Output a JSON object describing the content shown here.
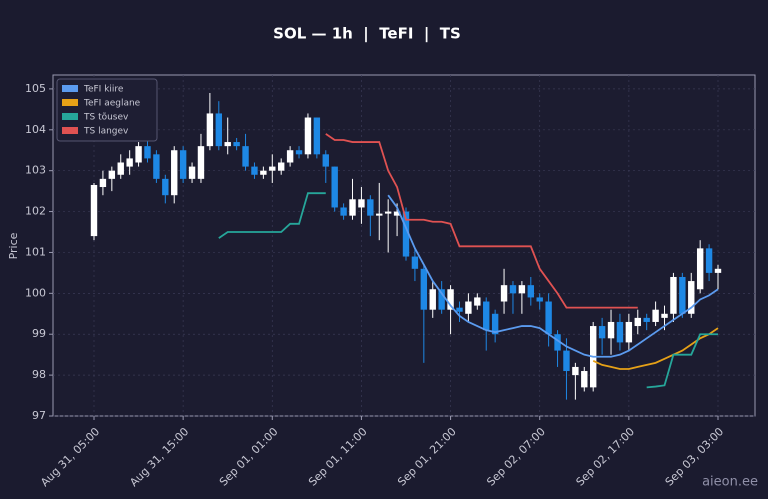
{
  "chart_data": {
    "type": "candlestick",
    "title": "SOL — 1h  |  TeFI  |  TS",
    "ylabel": "Price",
    "watermark": "aieon.ee",
    "x": [
      "Aug 31, 05:00",
      null,
      null,
      null,
      null,
      null,
      null,
      null,
      null,
      null,
      "Aug 31, 15:00",
      null,
      null,
      null,
      null,
      null,
      null,
      null,
      null,
      null,
      "Sep 01, 01:00",
      null,
      null,
      null,
      null,
      null,
      null,
      null,
      null,
      null,
      "Sep 01, 11:00",
      null,
      null,
      null,
      null,
      null,
      null,
      null,
      null,
      null,
      "Sep 01, 21:00",
      null,
      null,
      null,
      null,
      null,
      null,
      null,
      null,
      null,
      "Sep 02, 07:00",
      null,
      null,
      null,
      null,
      null,
      null,
      null,
      null,
      null,
      "Sep 02, 17:00",
      null,
      null,
      null,
      null,
      null,
      null,
      null,
      null,
      null,
      "Sep 03, 03:00"
    ],
    "open": [
      101.4,
      102.6,
      102.8,
      102.9,
      103.1,
      103.2,
      103.6,
      103.4,
      102.8,
      102.4,
      103.5,
      102.8,
      102.8,
      103.6,
      104.4,
      103.6,
      103.7,
      103.6,
      103.1,
      102.9,
      103.0,
      103.0,
      103.2,
      103.5,
      103.4,
      104.3,
      103.4,
      103.1,
      102.1,
      101.9,
      102.1,
      102.3,
      101.9,
      101.95,
      101.9,
      102.0,
      100.9,
      100.6,
      99.6,
      100.1,
      99.6,
      99.65,
      99.5,
      99.7,
      99.8,
      99.5,
      99.8,
      100.2,
      100.0,
      100.2,
      99.9,
      99.8,
      99.0,
      98.6,
      98.0,
      97.7,
      97.7,
      99.2,
      98.9,
      99.3,
      98.8,
      99.2,
      99.4,
      99.3,
      99.4,
      99.5,
      100.4,
      99.5,
      100.1,
      101.1,
      100.5
    ],
    "high": [
      102.7,
      103.0,
      103.1,
      103.4,
      103.5,
      103.7,
      103.9,
      103.5,
      102.9,
      103.6,
      103.6,
      103.2,
      103.9,
      104.9,
      104.7,
      104.3,
      103.8,
      103.9,
      103.2,
      103.1,
      103.4,
      103.3,
      103.6,
      103.6,
      104.4,
      104.3,
      103.5,
      103.1,
      102.2,
      102.8,
      102.6,
      102.4,
      102.7,
      102.3,
      102.2,
      102.1,
      101.1,
      100.7,
      100.3,
      100.3,
      100.2,
      99.8,
      100.0,
      100.0,
      99.9,
      99.6,
      100.6,
      100.3,
      100.3,
      100.4,
      100.0,
      100.0,
      99.1,
      98.9,
      98.3,
      98.2,
      99.3,
      99.4,
      99.6,
      99.5,
      99.5,
      99.6,
      99.5,
      99.8,
      99.7,
      100.5,
      100.5,
      100.5,
      101.3,
      101.2,
      100.7
    ],
    "low": [
      101.3,
      102.4,
      102.5,
      102.8,
      102.9,
      103.1,
      103.2,
      102.7,
      102.2,
      102.2,
      102.7,
      102.7,
      102.7,
      103.5,
      103.5,
      103.4,
      103.5,
      103.0,
      102.8,
      102.8,
      102.7,
      102.9,
      103.1,
      103.3,
      103.3,
      103.3,
      102.7,
      102.0,
      101.8,
      101.8,
      101.7,
      101.4,
      101.3,
      101.0,
      101.4,
      100.8,
      100.3,
      98.3,
      99.4,
      99.5,
      99.0,
      99.3,
      99.3,
      99.6,
      98.6,
      98.8,
      99.5,
      99.5,
      99.5,
      99.7,
      99.6,
      98.7,
      98.2,
      97.4,
      97.4,
      97.6,
      97.6,
      98.5,
      98.5,
      98.6,
      98.6,
      99.0,
      99.1,
      99.2,
      99.1,
      99.3,
      99.4,
      99.4,
      100.0,
      100.3,
      100.1
    ],
    "close": [
      102.65,
      102.8,
      103.0,
      103.2,
      103.3,
      103.6,
      103.3,
      102.8,
      102.4,
      103.5,
      102.8,
      103.1,
      103.6,
      104.4,
      103.6,
      103.7,
      103.6,
      103.1,
      102.9,
      103.0,
      103.1,
      103.2,
      103.5,
      103.4,
      104.3,
      103.4,
      103.1,
      102.1,
      101.9,
      102.3,
      102.3,
      101.9,
      101.95,
      102.0,
      102.0,
      100.9,
      100.6,
      99.6,
      100.1,
      99.6,
      100.1,
      99.55,
      99.8,
      99.9,
      99.1,
      99.0,
      100.2,
      100.0,
      100.2,
      99.9,
      99.8,
      99.0,
      98.6,
      98.1,
      98.2,
      98.1,
      99.2,
      98.9,
      99.3,
      98.8,
      99.3,
      99.4,
      99.3,
      99.6,
      99.5,
      100.4,
      99.5,
      100.3,
      101.1,
      100.5,
      100.6
    ],
    "up_color": "#ffffff",
    "down_color": "#1e88e5",
    "series": [
      {
        "name": "TeFI kiire",
        "color": "#5b9bef",
        "values": [
          null,
          null,
          null,
          null,
          null,
          null,
          null,
          null,
          null,
          null,
          null,
          null,
          null,
          null,
          null,
          null,
          null,
          null,
          null,
          null,
          null,
          null,
          null,
          null,
          null,
          null,
          null,
          null,
          null,
          null,
          null,
          null,
          null,
          102.4,
          102.1,
          101.6,
          101.1,
          100.7,
          100.3,
          100.0,
          99.7,
          99.45,
          99.3,
          99.2,
          99.1,
          99.05,
          99.1,
          99.15,
          99.2,
          99.2,
          99.15,
          99.0,
          98.85,
          98.7,
          98.6,
          98.5,
          98.45,
          98.45,
          98.45,
          98.5,
          98.6,
          98.75,
          98.9,
          99.05,
          99.2,
          99.35,
          99.5,
          99.65,
          99.85,
          99.95,
          100.1
        ]
      },
      {
        "name": "TeFI aeglane",
        "color": "#e6a117",
        "values": [
          null,
          null,
          null,
          null,
          null,
          null,
          null,
          null,
          null,
          null,
          null,
          null,
          null,
          null,
          null,
          null,
          null,
          null,
          null,
          null,
          null,
          null,
          null,
          null,
          null,
          null,
          null,
          null,
          null,
          null,
          null,
          null,
          null,
          null,
          null,
          null,
          null,
          null,
          null,
          null,
          null,
          null,
          null,
          null,
          null,
          null,
          null,
          null,
          null,
          null,
          null,
          null,
          null,
          null,
          null,
          null,
          98.35,
          98.25,
          98.2,
          98.15,
          98.15,
          98.2,
          98.25,
          98.3,
          98.4,
          98.5,
          98.6,
          98.75,
          98.9,
          99.0,
          99.15
        ]
      },
      {
        "name": "TS tõusev",
        "color": "#26a69a",
        "values": [
          null,
          null,
          null,
          null,
          null,
          null,
          null,
          null,
          null,
          null,
          null,
          null,
          null,
          null,
          101.35,
          101.5,
          101.5,
          101.5,
          101.5,
          101.5,
          101.5,
          101.5,
          101.7,
          101.7,
          102.45,
          102.45,
          102.45,
          null,
          null,
          null,
          null,
          null,
          null,
          null,
          null,
          null,
          null,
          null,
          null,
          null,
          null,
          null,
          null,
          null,
          null,
          null,
          null,
          null,
          null,
          null,
          null,
          null,
          null,
          null,
          null,
          null,
          null,
          null,
          null,
          null,
          null,
          null,
          97.7,
          97.72,
          97.75,
          98.5,
          98.5,
          98.5,
          99.0,
          99.0,
          99.0
        ]
      },
      {
        "name": "TS langev",
        "color": "#e05252",
        "values": [
          null,
          null,
          null,
          null,
          null,
          null,
          null,
          null,
          null,
          null,
          null,
          null,
          null,
          null,
          null,
          null,
          null,
          null,
          null,
          null,
          null,
          null,
          null,
          null,
          null,
          null,
          103.9,
          103.75,
          103.75,
          103.7,
          103.7,
          103.7,
          103.7,
          103.0,
          102.6,
          101.8,
          101.8,
          101.8,
          101.75,
          101.75,
          101.7,
          101.15,
          101.15,
          101.15,
          101.15,
          101.15,
          101.15,
          101.15,
          101.15,
          101.15,
          100.6,
          100.3,
          100.0,
          99.65,
          99.65,
          99.65,
          99.65,
          99.65,
          99.65,
          99.65,
          99.65,
          99.65,
          null,
          null,
          null,
          null,
          null,
          null,
          null,
          null,
          null
        ]
      }
    ],
    "ylim": [
      97,
      105.34
    ],
    "yticks": [
      97,
      98,
      99,
      100,
      101,
      102,
      103,
      104,
      105
    ],
    "grid": true,
    "legend": "upper left"
  }
}
